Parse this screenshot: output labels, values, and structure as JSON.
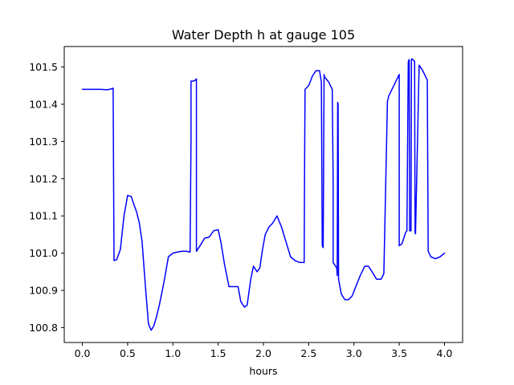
{
  "chart_data": {
    "type": "line",
    "title": "Water Depth h at gauge 105",
    "xlabel": "hours",
    "ylabel": "",
    "xlim": [
      -0.2,
      4.2
    ],
    "ylim": [
      100.76,
      101.555
    ],
    "xticks": [
      0.0,
      0.5,
      1.0,
      1.5,
      2.0,
      2.5,
      3.0,
      3.5,
      4.0
    ],
    "xtick_labels": [
      "0.0",
      "0.5",
      "1.0",
      "1.5",
      "2.0",
      "2.5",
      "3.0",
      "3.5",
      "4.0"
    ],
    "yticks": [
      100.8,
      100.9,
      101.0,
      101.1,
      101.2,
      101.3,
      101.4,
      101.5
    ],
    "ytick_labels": [
      "100.8",
      "100.9",
      "101.0",
      "101.1",
      "101.2",
      "101.3",
      "101.4",
      "101.5"
    ],
    "grid": false,
    "legend": "none",
    "series": [
      {
        "color": "#0000ff",
        "x": [
          0.0,
          0.1,
          0.2,
          0.27,
          0.3,
          0.34,
          0.345,
          0.35,
          0.38,
          0.42,
          0.46,
          0.5,
          0.54,
          0.57,
          0.6,
          0.63,
          0.66,
          0.7,
          0.73,
          0.76,
          0.79,
          0.82,
          0.85,
          0.9,
          0.95,
          1.0,
          1.05,
          1.1,
          1.15,
          1.19,
          1.2,
          1.2,
          1.22,
          1.24,
          1.26,
          1.26,
          1.3,
          1.35,
          1.4,
          1.45,
          1.5,
          1.53,
          1.57,
          1.62,
          1.67,
          1.72,
          1.75,
          1.79,
          1.82,
          1.86,
          1.89,
          1.93,
          1.96,
          1.99,
          2.02,
          2.06,
          2.1,
          2.15,
          2.2,
          2.25,
          2.3,
          2.35,
          2.4,
          2.45,
          2.455,
          2.46,
          2.5,
          2.54,
          2.58,
          2.62,
          2.64,
          2.65,
          2.65,
          2.66,
          2.67,
          2.67,
          2.72,
          2.76,
          2.77,
          2.77,
          2.81,
          2.815,
          2.82,
          2.825,
          2.83,
          2.86,
          2.9,
          2.94,
          2.98,
          3.02,
          3.07,
          3.12,
          3.16,
          3.2,
          3.25,
          3.3,
          3.33,
          3.37,
          3.38,
          3.38,
          3.5,
          3.5,
          3.53,
          3.57,
          3.585,
          3.6,
          3.61,
          3.615,
          3.63,
          3.635,
          3.64,
          3.67,
          3.675,
          3.68,
          3.72,
          3.76,
          3.8,
          3.81,
          3.82,
          3.85,
          3.9,
          3.95,
          4.0
        ],
        "y": [
          101.44,
          101.44,
          101.44,
          101.439,
          101.44,
          101.443,
          101.2,
          100.98,
          100.983,
          101.01,
          101.1,
          101.155,
          101.152,
          101.13,
          101.11,
          101.08,
          101.03,
          100.9,
          100.81,
          100.793,
          100.805,
          100.83,
          100.86,
          100.92,
          100.99,
          101.0,
          101.003,
          101.005,
          101.005,
          101.003,
          101.3,
          101.462,
          101.462,
          101.463,
          101.468,
          101.005,
          101.02,
          101.04,
          101.043,
          101.06,
          101.063,
          101.03,
          100.97,
          100.91,
          100.91,
          100.91,
          100.87,
          100.855,
          100.86,
          100.93,
          100.965,
          100.95,
          100.96,
          101.01,
          101.05,
          101.07,
          101.08,
          101.1,
          101.07,
          101.03,
          100.99,
          100.98,
          100.975,
          100.975,
          101.25,
          101.44,
          101.45,
          101.475,
          101.49,
          101.49,
          101.46,
          101.02,
          101.02,
          101.015,
          101.48,
          101.475,
          101.46,
          101.44,
          101.2,
          100.975,
          100.96,
          100.94,
          101.405,
          101.4,
          100.93,
          100.89,
          100.875,
          100.875,
          100.885,
          100.91,
          100.94,
          100.965,
          100.965,
          100.95,
          100.93,
          100.93,
          100.945,
          101.41,
          101.415,
          101.42,
          101.48,
          101.02,
          101.025,
          101.055,
          101.06,
          101.515,
          101.52,
          101.06,
          101.06,
          101.52,
          101.522,
          101.515,
          101.055,
          101.052,
          101.505,
          101.49,
          101.47,
          101.465,
          101.005,
          100.99,
          100.985,
          100.99,
          101.0
        ]
      }
    ]
  }
}
